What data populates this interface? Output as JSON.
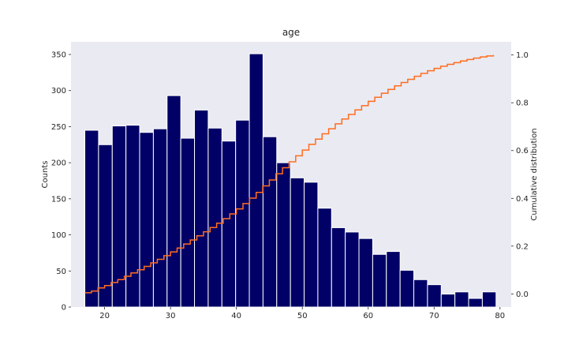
{
  "chart_data": {
    "type": "bar",
    "title": "age",
    "xlabel": "",
    "ylabel": "Counts",
    "y2label": "Cumulative distribution",
    "xlim": [
      14.9,
      81.7
    ],
    "ylim": [
      0,
      367.5
    ],
    "y2lim": [
      -0.055,
      1.055
    ],
    "grid": false,
    "colors": {
      "background": "#eaeaf2",
      "bars": "#000066",
      "bar_edge": "#ffffff",
      "cumulative_line": "#ff6d1f"
    },
    "x_ticks": [
      "20",
      "30",
      "40",
      "50",
      "60",
      "70",
      "80"
    ],
    "y_ticks": [
      "0",
      "50",
      "100",
      "150",
      "200",
      "250",
      "300",
      "350"
    ],
    "y2_ticks": [
      "0.0",
      "0.2",
      "0.4",
      "0.6",
      "0.8",
      "1.0"
    ],
    "bin_edges": [
      17.0,
      19.08,
      21.16,
      23.24,
      25.32,
      27.4,
      29.48,
      31.56,
      33.64,
      35.72,
      37.8,
      39.88,
      41.96,
      44.04,
      46.12,
      48.2,
      50.28,
      52.36,
      54.44,
      56.52,
      58.6,
      60.68,
      62.76,
      64.84,
      66.92,
      69.0,
      71.08,
      73.16,
      75.24,
      77.32,
      79.4
    ],
    "values": [
      245,
      225,
      251,
      252,
      242,
      247,
      293,
      234,
      273,
      248,
      230,
      259,
      351,
      236,
      200,
      179,
      173,
      137,
      110,
      104,
      95,
      73,
      77,
      51,
      38,
      31,
      18,
      21,
      12,
      21
    ],
    "cumulative": {
      "name": "Cumulative distribution",
      "x": [
        17.0,
        18.0,
        19.0,
        20.0,
        21.0,
        22.0,
        23.0,
        24.0,
        25.0,
        26.0,
        27.0,
        28.0,
        29.0,
        30.0,
        31.0,
        32.0,
        33.0,
        34.0,
        35.0,
        36.0,
        37.0,
        38.0,
        39.0,
        40.0,
        41.0,
        42.0,
        43.0,
        44.0,
        45.0,
        46.0,
        47.0,
        48.0,
        49.0,
        50.0,
        51.0,
        52.0,
        53.0,
        54.0,
        55.0,
        56.0,
        57.0,
        58.0,
        59.0,
        60.0,
        61.0,
        62.0,
        63.0,
        64.0,
        65.0,
        66.0,
        67.0,
        68.0,
        69.0,
        70.0,
        71.0,
        72.0,
        73.0,
        74.0,
        75.0,
        76.0,
        77.0,
        78.0,
        79.0
      ],
      "y": [
        0.005,
        0.012,
        0.025,
        0.035,
        0.048,
        0.06,
        0.074,
        0.088,
        0.101,
        0.115,
        0.13,
        0.145,
        0.16,
        0.176,
        0.192,
        0.209,
        0.226,
        0.243,
        0.26,
        0.278,
        0.296,
        0.315,
        0.335,
        0.356,
        0.378,
        0.401,
        0.425,
        0.452,
        0.477,
        0.503,
        0.528,
        0.553,
        0.578,
        0.602,
        0.626,
        0.648,
        0.67,
        0.691,
        0.712,
        0.732,
        0.751,
        0.77,
        0.788,
        0.806,
        0.823,
        0.84,
        0.856,
        0.871,
        0.885,
        0.898,
        0.911,
        0.923,
        0.934,
        0.944,
        0.953,
        0.961,
        0.968,
        0.975,
        0.981,
        0.987,
        0.992,
        0.996,
        1.0
      ]
    }
  }
}
